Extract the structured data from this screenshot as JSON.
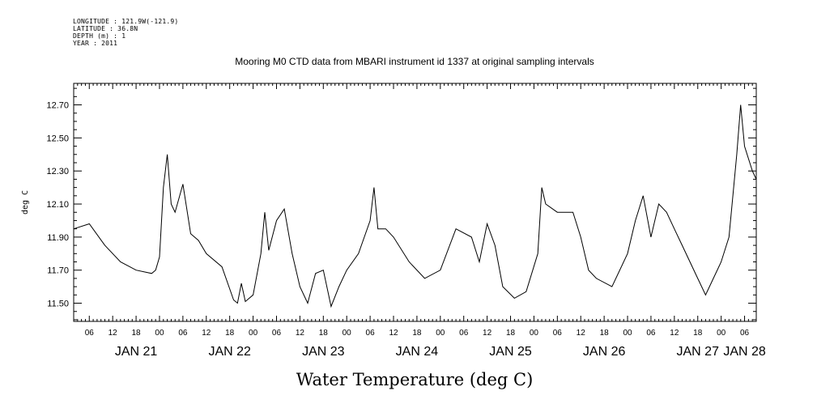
{
  "header": {
    "longitude": "LONGITUDE : 121.9W(-121.9)",
    "latitude": "LATITUDE : 36.8N",
    "depth": "DEPTH (m) : 1",
    "year": "YEAR : 2011"
  },
  "chart_data": {
    "type": "line",
    "title": "Mooring M0 CTD data from MBARI instrument id 1337 at original sampling intervals",
    "xlabel": "Water Temperature (deg C)",
    "ylabel": "deg C",
    "ylim": [
      11.39,
      12.83
    ],
    "xlim": [
      "2011-01-20T20:00",
      "2011-01-28T03:00"
    ],
    "yticks": [
      "11.50",
      "11.70",
      "11.90",
      "12.10",
      "12.30",
      "12.50",
      "12.70"
    ],
    "xticks_hours": [
      "06",
      "12",
      "18",
      "00",
      "06",
      "12",
      "18",
      "00",
      "06",
      "12",
      "18",
      "00",
      "06",
      "12",
      "18",
      "00",
      "06",
      "12",
      "18",
      "00",
      "06",
      "12",
      "18",
      "00",
      "06",
      "12",
      "18",
      "00",
      "06",
      "12",
      "18",
      "00"
    ],
    "xticks_days": [
      "JAN 21",
      "JAN 22",
      "JAN 23",
      "JAN 24",
      "JAN 25",
      "JAN 26",
      "JAN 27",
      "JAN 28"
    ],
    "grid": false,
    "color": "#000000",
    "series": [
      {
        "x": [
          "2011-01-20T20:00",
          "2011-01-21T00:00",
          "2011-01-21T04:00",
          "2011-01-21T08:00",
          "2011-01-21T12:00",
          "2011-01-21T16:00",
          "2011-01-21T17:00",
          "2011-01-21T18:00",
          "2011-01-21T19:00",
          "2011-01-21T20:00",
          "2011-01-21T21:00",
          "2011-01-21T22:00",
          "2011-01-22T00:00",
          "2011-01-22T02:00",
          "2011-01-22T04:00",
          "2011-01-22T06:00",
          "2011-01-22T10:00",
          "2011-01-22T13:00",
          "2011-01-22T14:00",
          "2011-01-22T15:00",
          "2011-01-22T16:00",
          "2011-01-22T18:00",
          "2011-01-22T20:00",
          "2011-01-22T21:00",
          "2011-01-22T22:00",
          "2011-01-23T00:00",
          "2011-01-23T02:00",
          "2011-01-23T04:00",
          "2011-01-23T06:00",
          "2011-01-23T08:00",
          "2011-01-23T10:00",
          "2011-01-23T12:00",
          "2011-01-23T14:00",
          "2011-01-23T16:00",
          "2011-01-23T18:00",
          "2011-01-23T21:00",
          "2011-01-24T00:00",
          "2011-01-24T01:00",
          "2011-01-24T02:00",
          "2011-01-24T04:00",
          "2011-01-24T06:00",
          "2011-01-24T10:00",
          "2011-01-24T14:00",
          "2011-01-24T18:00",
          "2011-01-24T22:00",
          "2011-01-25T02:00",
          "2011-01-25T04:00",
          "2011-01-25T06:00",
          "2011-01-25T08:00",
          "2011-01-25T10:00",
          "2011-01-25T13:00",
          "2011-01-25T16:00",
          "2011-01-25T19:00",
          "2011-01-25T20:00",
          "2011-01-25T21:00",
          "2011-01-26T00:00",
          "2011-01-26T02:00",
          "2011-01-26T04:00",
          "2011-01-26T06:00",
          "2011-01-26T08:00",
          "2011-01-26T10:00",
          "2011-01-26T14:00",
          "2011-01-26T18:00",
          "2011-01-26T20:00",
          "2011-01-26T22:00",
          "2011-01-27T00:00",
          "2011-01-27T02:00",
          "2011-01-27T04:00",
          "2011-01-27T06:00",
          "2011-01-27T08:00",
          "2011-01-27T12:00",
          "2011-01-27T14:00",
          "2011-01-27T15:00",
          "2011-01-27T18:00",
          "2011-01-27T20:00",
          "2011-01-27T22:00",
          "2011-01-27T23:00",
          "2011-01-28T00:00",
          "2011-01-28T02:00",
          "2011-01-28T03:00"
        ],
        "values": [
          11.95,
          11.98,
          11.85,
          11.75,
          11.7,
          11.68,
          11.7,
          11.78,
          12.2,
          12.4,
          12.1,
          12.05,
          12.22,
          11.92,
          11.88,
          11.8,
          11.72,
          11.52,
          11.5,
          11.62,
          11.51,
          11.55,
          11.8,
          12.05,
          11.82,
          12.0,
          12.07,
          11.8,
          11.6,
          11.5,
          11.68,
          11.7,
          11.48,
          11.6,
          11.7,
          11.8,
          12.0,
          12.2,
          11.95,
          11.95,
          11.9,
          11.75,
          11.65,
          11.7,
          11.95,
          11.9,
          11.75,
          11.98,
          11.85,
          11.6,
          11.53,
          11.57,
          11.8,
          12.2,
          12.1,
          12.05,
          12.05,
          12.05,
          11.9,
          11.7,
          11.65,
          11.6,
          11.8,
          12.0,
          12.15,
          11.9,
          12.1,
          12.05,
          11.95,
          11.85,
          11.65,
          11.55,
          11.6,
          11.75,
          11.9,
          12.4,
          12.7,
          12.45,
          12.3,
          12.25
        ]
      }
    ]
  }
}
